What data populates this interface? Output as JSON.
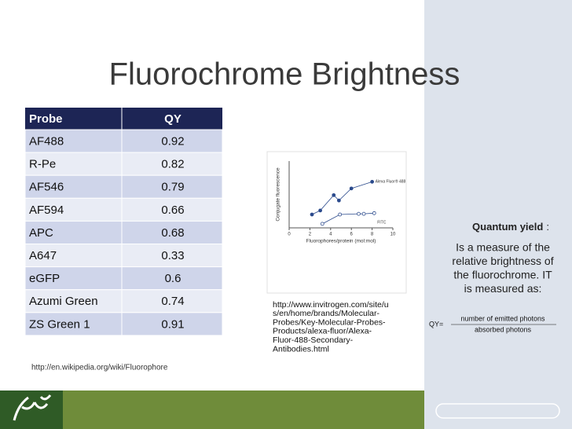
{
  "title": "Fluorochrome Brightness",
  "table": {
    "header": [
      "Probe",
      "QY"
    ],
    "rows": [
      [
        "AF488",
        0.92
      ],
      [
        "R-Pe",
        0.82
      ],
      [
        "AF546",
        0.79
      ],
      [
        "AF594",
        0.66
      ],
      [
        "APC",
        0.68
      ],
      [
        "A647",
        0.33
      ],
      [
        "eGFP",
        0.6
      ],
      [
        "Azumi Green",
        0.74
      ],
      [
        "ZS Green 1",
        0.91
      ]
    ]
  },
  "source": "http://en.wikipedia.org/wiki/Fluorophore",
  "figure": {
    "type": "scatter",
    "y_label": "Conjugate fluorescence",
    "x_label": "Fluorophores/protein (mol:mol)",
    "xlim": [
      0,
      10
    ],
    "xticks": [
      0,
      2,
      4,
      6,
      8,
      10
    ],
    "ylim": [
      0,
      1
    ],
    "series": [
      {
        "name": "Alexa Fluor® 488",
        "color": "#2b4a8c",
        "marker": "filled",
        "x": [
          2.2,
          3.0,
          4.3,
          4.8,
          6.0,
          8.0
        ],
        "values": [
          0.2,
          0.26,
          0.49,
          0.41,
          0.59,
          0.69
        ]
      },
      {
        "name": "FITC",
        "color": "#2b4a8c",
        "marker": "open",
        "x": [
          3.2,
          4.9,
          6.7,
          7.2,
          8.2
        ],
        "values": [
          0.06,
          0.2,
          0.21,
          0.21,
          0.22
        ]
      }
    ]
  },
  "figure_source": [
    "http://www.invitrogen.com/site/u",
    "s/en/home/brands/Molecular-",
    "Probes/Key-Molecular-Probes-",
    "Products/alexa-fluor/Alexa-",
    "Fluor-488-Secondary-",
    "Antibodies.html"
  ],
  "definition": {
    "term": "Quantum yield",
    "separator": ":",
    "lines": [
      "Is a measure of the",
      "relative brightness of",
      "the fluorochrome. IT",
      "is measured as:"
    ]
  },
  "formula": {
    "lhs": "QY=",
    "numerator": "number of emitted photons",
    "denominator": "absorbed photons"
  }
}
